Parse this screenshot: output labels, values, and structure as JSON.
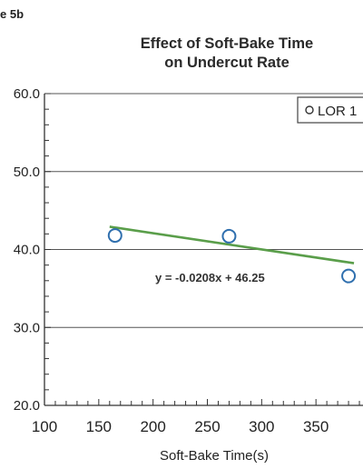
{
  "figure_label": "e 5b",
  "chart_data": {
    "type": "scatter",
    "title_line1": "Effect of Soft-Bake Time",
    "title_line2": "on Undercut Rate",
    "xlabel": "Soft-Bake Time(s)",
    "ylabel": "",
    "xlim": [
      100,
      400
    ],
    "ylim": [
      20,
      60
    ],
    "x_ticks": [
      "100",
      "150",
      "200",
      "250",
      "300",
      "350"
    ],
    "y_ticks": [
      "20.0",
      "30.0",
      "40.0",
      "50.0",
      "60.0"
    ],
    "grid_y": true,
    "series": [
      {
        "name": "LOR 1",
        "x": [
          165,
          270,
          380
        ],
        "y": [
          41.8,
          41.7,
          36.6
        ],
        "color": "#2f6fae"
      }
    ],
    "trendline": {
      "slope": -0.0208,
      "intercept": 46.25,
      "x_range": [
        160,
        385
      ],
      "color": "#5a9e4a"
    },
    "annotation": "y = -0.0208x + 46.25",
    "legend_label": "LOR 1",
    "legend_position": "top-right"
  }
}
